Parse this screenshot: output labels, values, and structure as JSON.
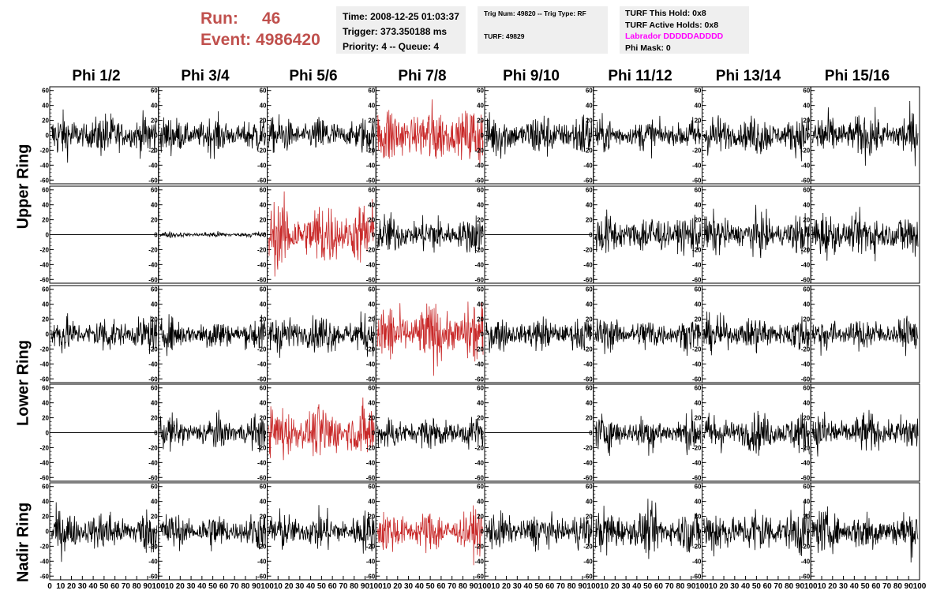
{
  "header": {
    "run_label": "Run:",
    "run_value": "46",
    "event_label": "Event:",
    "event_value": "4986420",
    "time": "Time: 2008-12-25 01:03:37",
    "trigger": "Trigger: 373.350188 ms",
    "priority": "Priority: 4 -- Queue: 4",
    "trig_num": "Trig Num: 49820 -- Trig Type: RF",
    "turf": "TURF: 49829",
    "turf_this_hold": "TURF This Hold: 0x8",
    "turf_active_holds": "TURF Active Holds: 0x8",
    "labrador": "Labrador DDDDDADDDD",
    "phi_mask": "Phi Mask: 0"
  },
  "phi_headers": [
    "Phi 1/2",
    "Phi 3/4",
    "Phi 5/6",
    "Phi 7/8",
    "Phi 9/10",
    "Phi 11/12",
    "Phi 13/14",
    "Phi 15/16"
  ],
  "ring_labels": [
    "Upper Ring",
    "Lower Ring",
    "Nadir Ring"
  ],
  "colors": {
    "trace": "#000000",
    "triggered": "#c82828",
    "run_text": "#c0504d",
    "labrador": "#ff00ff",
    "box_bg": "#efefef"
  },
  "chart_data": {
    "type": "line",
    "description_rows": 5,
    "description_cols": 8,
    "xlim": [
      0,
      100
    ],
    "ylim": [
      -65,
      65
    ],
    "y_ticks": [
      -60,
      -40,
      -20,
      0,
      20,
      40,
      60
    ],
    "x_tick_labels_first": [
      "0",
      "10",
      "20",
      "30",
      "40",
      "50",
      "60",
      "70",
      "80",
      "90",
      "100"
    ],
    "x_tick_labels": [
      "10",
      "20",
      "30",
      "40",
      "50",
      "60",
      "70",
      "80",
      "90",
      "100"
    ],
    "cells": [
      [
        {
          "amp": 14
        },
        {
          "amp": 12
        },
        {
          "amp": 12
        },
        {
          "amp": 20,
          "red": true
        },
        {
          "amp": 15
        },
        {
          "amp": 11
        },
        {
          "amp": 13
        },
        {
          "amp": 15
        }
      ],
      [
        {
          "amp": 0
        },
        {
          "amp": 2
        },
        {
          "amp": 22,
          "red": true
        },
        {
          "amp": 13
        },
        {
          "amp": 0
        },
        {
          "amp": 14
        },
        {
          "amp": 13
        },
        {
          "amp": 15
        }
      ],
      [
        {
          "amp": 12
        },
        {
          "amp": 11
        },
        {
          "amp": 13
        },
        {
          "amp": 20,
          "red": true
        },
        {
          "amp": 11
        },
        {
          "amp": 11
        },
        {
          "amp": 12
        },
        {
          "amp": 11
        }
      ],
      [
        {
          "amp": 0
        },
        {
          "amp": 11
        },
        {
          "amp": 18,
          "red": true
        },
        {
          "amp": 11
        },
        {
          "amp": 0
        },
        {
          "amp": 12
        },
        {
          "amp": 13
        },
        {
          "amp": 13
        }
      ],
      [
        {
          "amp": 14
        },
        {
          "amp": 12
        },
        {
          "amp": 13
        },
        {
          "amp": 14,
          "red": true
        },
        {
          "amp": 12
        },
        {
          "amp": 15
        },
        {
          "amp": 16
        },
        {
          "amp": 14
        }
      ]
    ]
  }
}
